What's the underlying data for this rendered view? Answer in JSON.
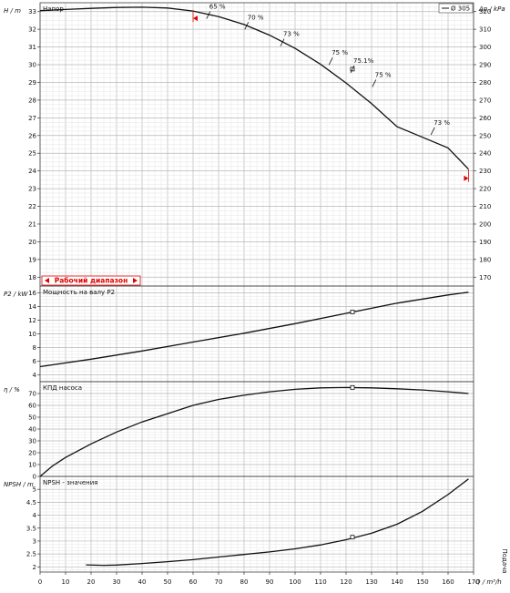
{
  "chart_data": [
    {
      "type": "line",
      "panel": "head",
      "title": "Напор",
      "ylabel": "H / m",
      "ylabel_right": "Δp / kPa",
      "ylim": [
        17.5,
        33.5
      ],
      "yticks": [
        18,
        19,
        20,
        21,
        22,
        23,
        24,
        25,
        26,
        27,
        28,
        29,
        30,
        31,
        32,
        33
      ],
      "y2ticks": [
        170,
        180,
        190,
        200,
        210,
        220,
        230,
        240,
        250,
        260,
        270,
        280,
        290,
        300,
        310,
        320
      ],
      "xlim": [
        0,
        170
      ],
      "legend": {
        "label": "Ø 305",
        "position": "top-right"
      },
      "series": [
        {
          "x": [
            0,
            10,
            20,
            30,
            40,
            50,
            60,
            70,
            80,
            90,
            100,
            110,
            120,
            130,
            140,
            150,
            160,
            168
          ],
          "y": [
            33.05,
            33.12,
            33.18,
            33.23,
            33.25,
            33.2,
            33.03,
            32.72,
            32.27,
            31.67,
            30.92,
            30.02,
            28.97,
            27.8,
            26.5,
            25.9,
            25.3,
            24.1
          ]
        }
      ],
      "efficiency_marks": [
        {
          "x": 66,
          "y": 32.8,
          "label": "65 %"
        },
        {
          "x": 81,
          "y": 32.2,
          "label": "70 %"
        },
        {
          "x": 95,
          "y": 31.25,
          "label": "73 %"
        },
        {
          "x": 114,
          "y": 30.2,
          "label": "75 %"
        },
        {
          "x": 122.5,
          "y": 29.75,
          "label": "75.1%"
        },
        {
          "x": 131,
          "y": 28.95,
          "label": "75 %"
        },
        {
          "x": 154,
          "y": 26.25,
          "label": "73 %"
        }
      ],
      "operating_point": {
        "x": 122.5,
        "y": 29.75
      },
      "range_label": "Рабочий диапазон",
      "range_limits": [
        60,
        168
      ]
    },
    {
      "type": "line",
      "panel": "power",
      "title": "Мощность на валу P2",
      "ylabel": "P2 / kW",
      "ylim": [
        3,
        17
      ],
      "yticks": [
        4,
        6,
        8,
        10,
        12,
        14,
        16
      ],
      "xlim": [
        0,
        170
      ],
      "series": [
        {
          "x": [
            0,
            20,
            40,
            60,
            80,
            100,
            120,
            140,
            160,
            168
          ],
          "y": [
            5.2,
            6.3,
            7.5,
            8.8,
            10.1,
            11.5,
            13.0,
            14.5,
            15.7,
            16.1
          ]
        }
      ],
      "operating_point": {
        "x": 122.5,
        "y": 13.2
      }
    },
    {
      "type": "line",
      "panel": "efficiency",
      "title": "КПД насоса",
      "ylabel": "η / %",
      "ylim": [
        0,
        80
      ],
      "yticks": [
        0,
        10,
        20,
        30,
        40,
        50,
        60,
        70
      ],
      "xlim": [
        0,
        170
      ],
      "series": [
        {
          "x": [
            0,
            5,
            10,
            20,
            30,
            40,
            50,
            60,
            70,
            80,
            90,
            100,
            110,
            120,
            130,
            140,
            150,
            160,
            168
          ],
          "y": [
            0,
            9,
            16,
            27.5,
            37.5,
            46,
            53,
            60,
            65,
            68.5,
            71.5,
            73.5,
            74.8,
            75.1,
            74.8,
            74,
            73,
            71.5,
            70
          ]
        }
      ],
      "operating_point": {
        "x": 122.5,
        "y": 75.1
      }
    },
    {
      "type": "line",
      "panel": "npsh",
      "title": "NPSH - значения",
      "ylabel": "NPSH / m",
      "xlabel": "Q / m³/h",
      "x_caption": "Подача",
      "ylim": [
        1.8,
        5.5
      ],
      "yticks": [
        2,
        2.5,
        3,
        3.5,
        4,
        4.5,
        5
      ],
      "xticks": [
        0,
        10,
        20,
        30,
        40,
        50,
        60,
        70,
        80,
        90,
        100,
        110,
        120,
        130,
        140,
        150,
        160,
        170
      ],
      "xlim": [
        0,
        170
      ],
      "series": [
        {
          "x": [
            18,
            25,
            30,
            40,
            50,
            60,
            70,
            80,
            90,
            100,
            110,
            120,
            130,
            140,
            150,
            160,
            168
          ],
          "y": [
            2.08,
            2.06,
            2.07,
            2.13,
            2.2,
            2.28,
            2.38,
            2.48,
            2.58,
            2.7,
            2.85,
            3.05,
            3.3,
            3.65,
            4.15,
            4.8,
            5.4
          ]
        }
      ],
      "operating_point": {
        "x": 122.5,
        "y": 3.15
      }
    }
  ]
}
